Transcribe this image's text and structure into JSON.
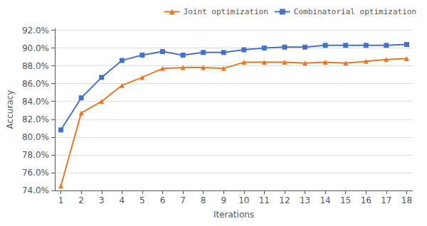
{
  "chart_data": {
    "type": "line",
    "x": [
      1,
      2,
      3,
      4,
      5,
      6,
      7,
      8,
      9,
      10,
      11,
      12,
      13,
      14,
      15,
      16,
      17,
      18
    ],
    "series": [
      {
        "name": "Joint optimization",
        "color": "#E87722",
        "marker": "triangle",
        "line_style": "solid",
        "values": [
          0.745,
          0.827,
          0.84,
          0.858,
          0.867,
          0.877,
          0.878,
          0.878,
          0.877,
          0.884,
          0.884,
          0.884,
          0.883,
          0.884,
          0.883,
          0.885,
          0.887,
          0.888
        ]
      },
      {
        "name": "Combinatorial optimization",
        "color": "#4472C4",
        "marker": "square",
        "line_style": "solid",
        "values": [
          0.808,
          0.844,
          0.867,
          0.886,
          0.892,
          0.896,
          0.892,
          0.895,
          0.895,
          0.898,
          0.9,
          0.901,
          0.901,
          0.903,
          0.903,
          0.903,
          0.903,
          0.904
        ]
      }
    ],
    "xlabel": "Iterations",
    "ylabel": "Accuracy",
    "xlim": [
      0.7,
      18.3
    ],
    "xticks": [
      1,
      2,
      3,
      4,
      5,
      6,
      7,
      8,
      9,
      10,
      11,
      12,
      13,
      14,
      15,
      16,
      17,
      18
    ],
    "ylim": [
      0.74,
      0.922
    ],
    "yticks": [
      {
        "value": 0.74,
        "label": "74.0%"
      },
      {
        "value": 0.76,
        "label": "76.0%"
      },
      {
        "value": 0.78,
        "label": "78.0%"
      },
      {
        "value": 0.8,
        "label": "80.0%"
      },
      {
        "value": 0.82,
        "label": "82.0%"
      },
      {
        "value": 0.84,
        "label": "84.0%"
      },
      {
        "value": 0.86,
        "label": "86.0%"
      },
      {
        "value": 0.88,
        "label": "88.0%"
      },
      {
        "value": 0.9,
        "label": "90.0%"
      },
      {
        "value": 0.92,
        "label": "92.0%"
      }
    ],
    "grid": true,
    "legend": "upper right"
  }
}
